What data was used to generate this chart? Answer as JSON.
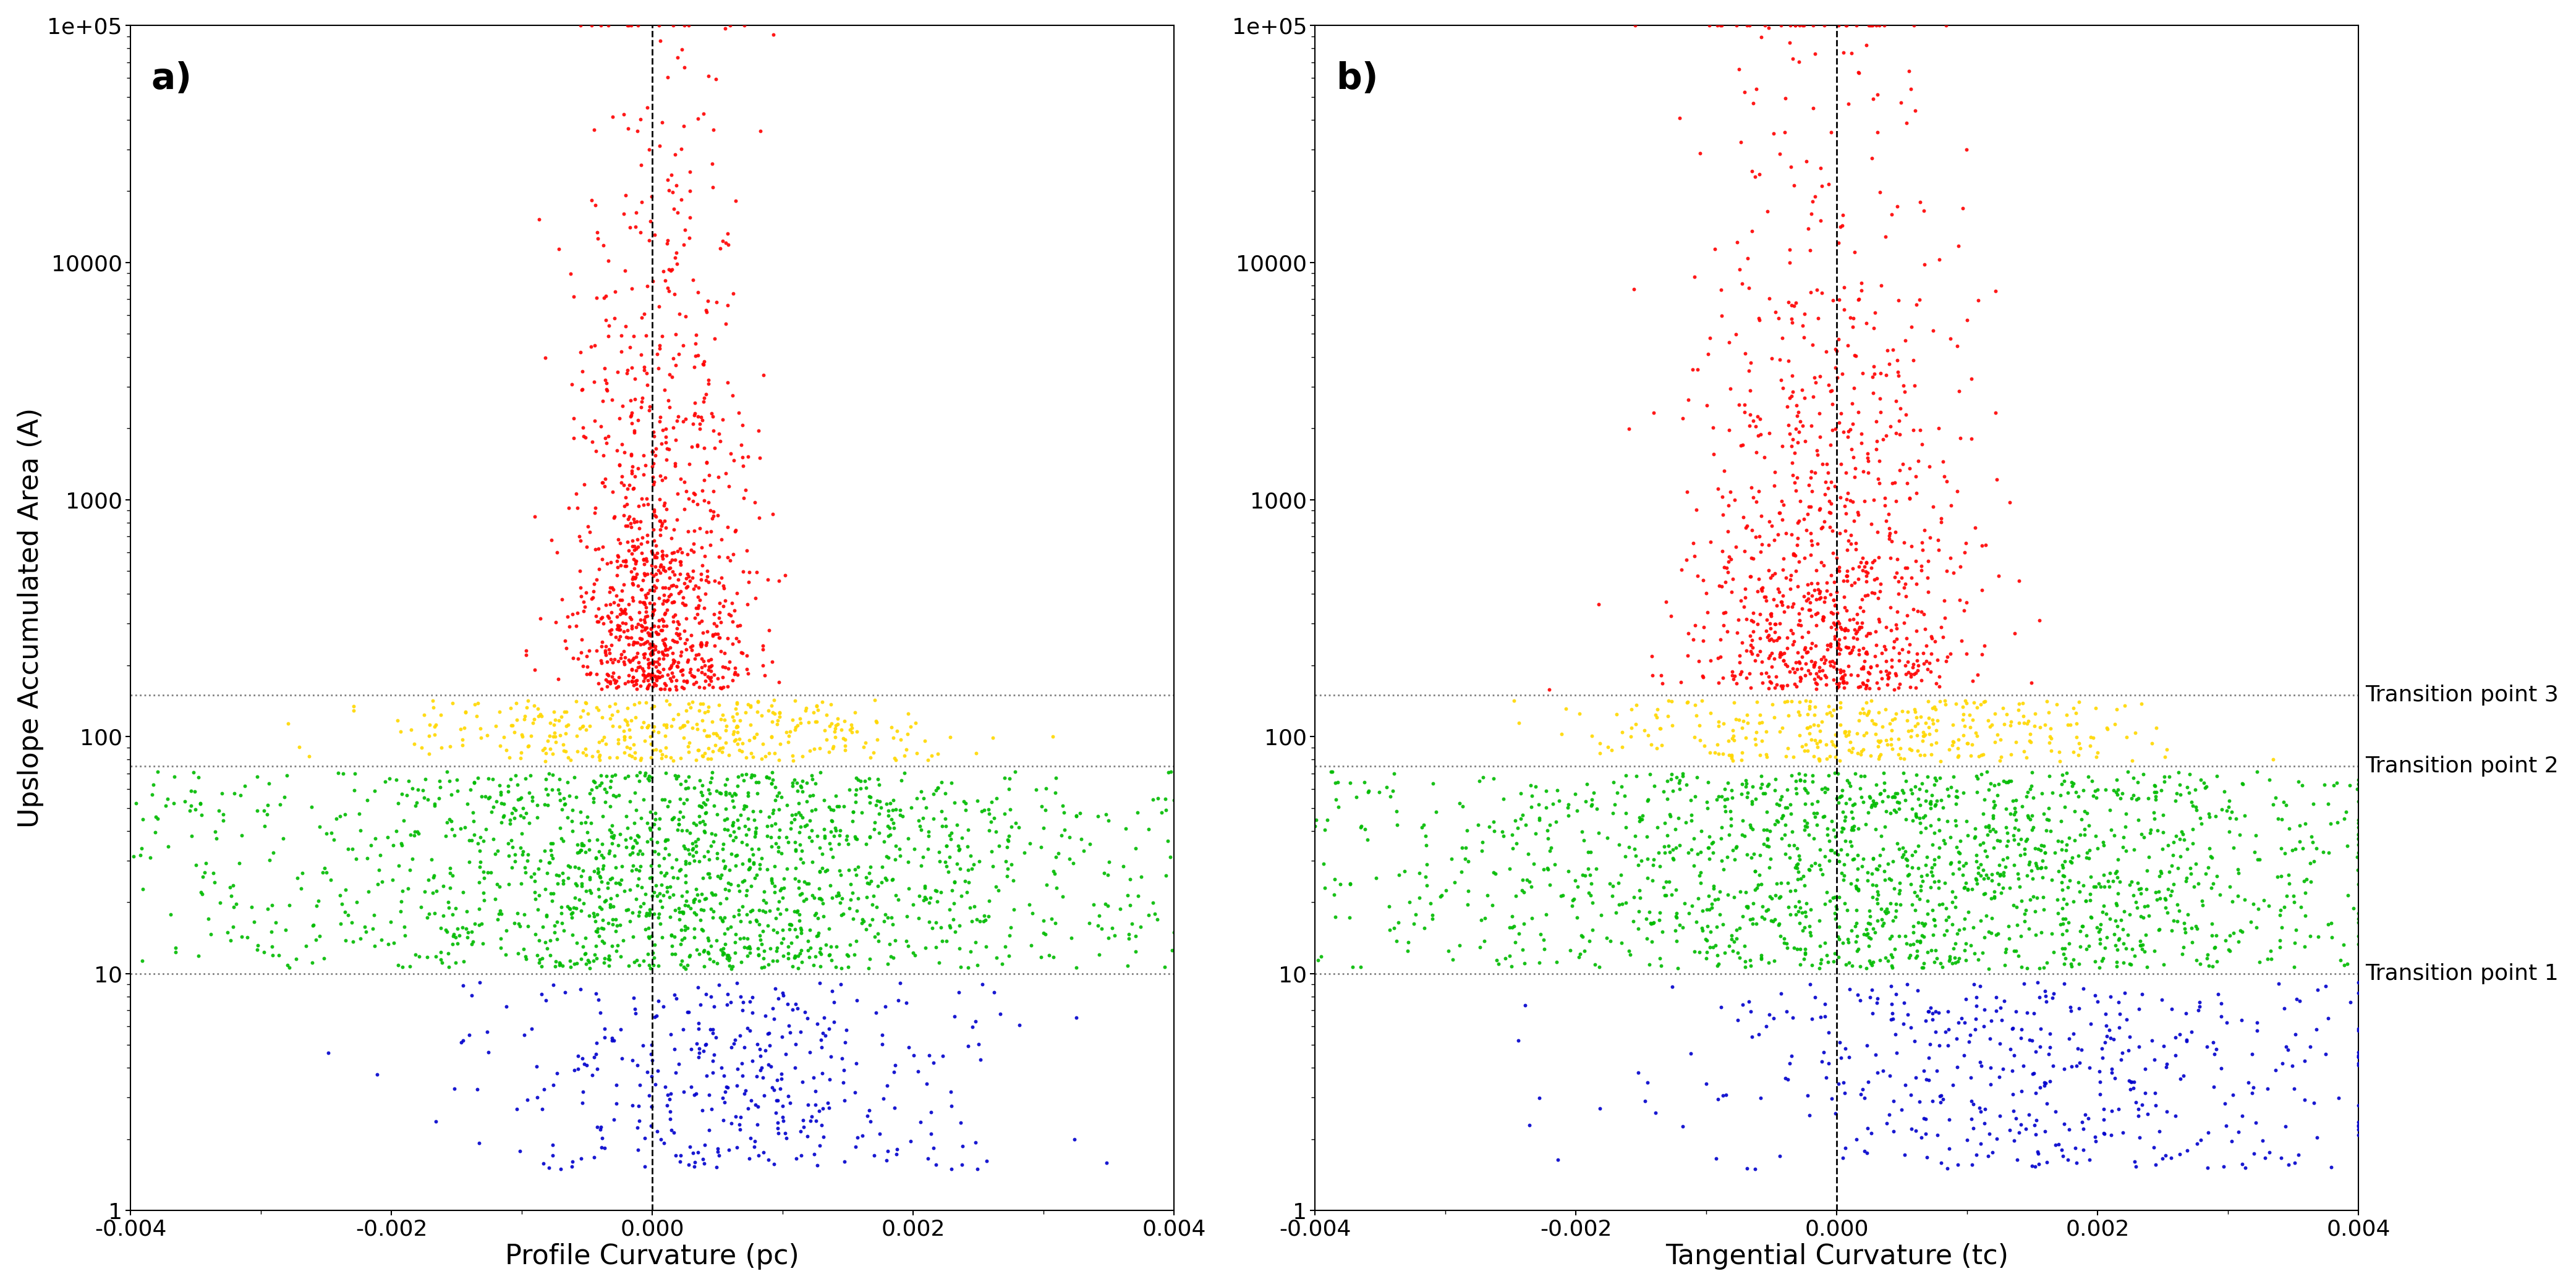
{
  "xlim": [
    -0.004,
    0.004
  ],
  "ylim": [
    1,
    100000
  ],
  "xlabel_a": "Profile Curvature (pc)",
  "xlabel_b": "Tangential Curvature (tc)",
  "ylabel": "Upslope Accumulated Area (A)",
  "label_a": "a)",
  "label_b": "b)",
  "transition1": 10,
  "transition2": 75,
  "transition3": 150,
  "transition_label1": "Transition point 1",
  "transition_label2": "Transition point 2",
  "transition_label3": "Transition point 3",
  "color_red": "#FF0000",
  "color_yellow": "#FFD700",
  "color_green": "#00BB00",
  "color_blue": "#0000CC",
  "dotted_color": "#808080",
  "dashed_color": "#000000",
  "bg_color": "#FFFFFF",
  "marker_size": 18,
  "seed": 42,
  "n_total_a": 3500,
  "n_total_b": 3500
}
